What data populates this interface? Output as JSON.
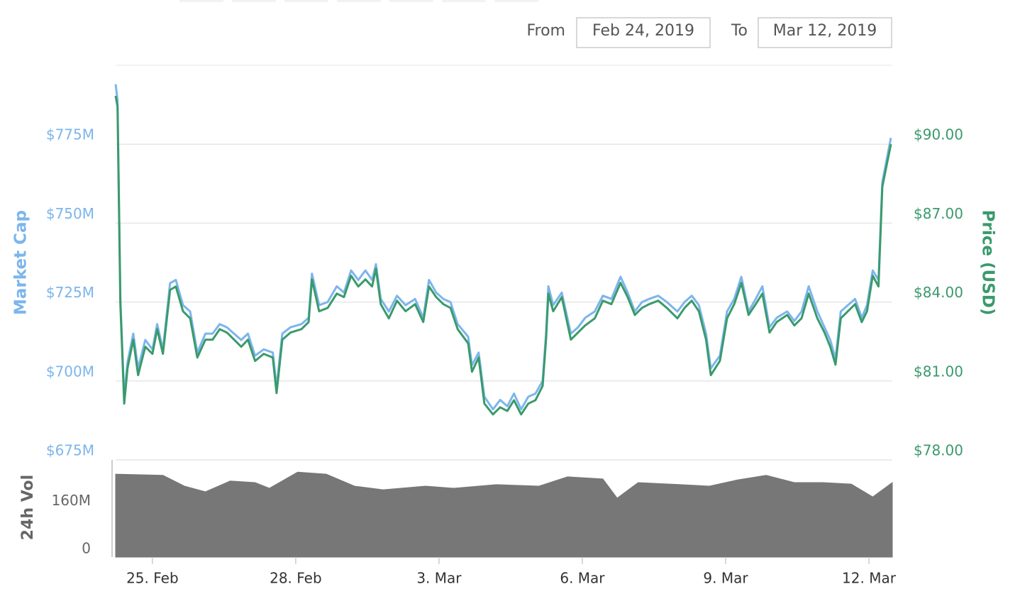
{
  "chart_data": [
    {
      "type": "line",
      "from_label": "From",
      "from_date": "Feb 24, 2019",
      "to_label": "To",
      "to_date": "Mar 12, 2019",
      "ylabel": "Market Cap",
      "y2label": "Price (USD)",
      "x": [
        0.23,
        0.27,
        0.33,
        0.41,
        0.48,
        0.6,
        0.7,
        0.85,
        1.0,
        1.1,
        1.22,
        1.37,
        1.49,
        1.64,
        1.79,
        1.94,
        2.11,
        2.26,
        2.41,
        2.56,
        2.71,
        2.86,
        3.0,
        3.15,
        3.33,
        3.52,
        3.6,
        3.72,
        3.89,
        4.12,
        4.27,
        4.34,
        4.49,
        4.67,
        4.86,
        5.01,
        5.16,
        5.31,
        5.46,
        5.6,
        5.68,
        5.78,
        5.95,
        6.12,
        6.3,
        6.5,
        6.67,
        6.79,
        6.94,
        7.09,
        7.24,
        7.39,
        7.61,
        7.69,
        7.83,
        7.95,
        8.13,
        8.28,
        8.43,
        8.57,
        8.72,
        8.87,
        9.02,
        9.17,
        9.24,
        9.29,
        9.39,
        9.57,
        9.76,
        9.91,
        10.06,
        10.26,
        10.43,
        10.61,
        10.8,
        10.95,
        11.1,
        11.25,
        11.4,
        11.59,
        11.77,
        11.99,
        12.14,
        12.29,
        12.44,
        12.59,
        12.69,
        12.88,
        13.03,
        13.18,
        13.33,
        13.48,
        13.63,
        13.77,
        13.92,
        14.07,
        14.29,
        14.44,
        14.59,
        14.74,
        14.92,
        15.07,
        15.19,
        15.3,
        15.41,
        15.56,
        15.71,
        15.85,
        15.96,
        16.08,
        16.2,
        16.28,
        16.37,
        16.46
      ],
      "series": [
        {
          "name": "Market Cap",
          "color": "#7cb5ec",
          "axis": "y",
          "values": [
            794,
            789,
            726,
            695,
            706,
            715,
            704,
            713,
            710,
            718,
            710,
            731,
            732,
            724,
            722,
            709,
            715,
            715,
            718,
            717,
            715,
            713,
            715,
            708,
            710,
            709,
            698,
            715,
            717,
            718,
            720,
            734,
            724,
            725,
            730,
            728,
            735,
            732,
            735,
            732,
            737,
            726,
            722,
            727,
            724,
            726,
            720,
            732,
            728,
            726,
            725,
            718,
            714,
            705,
            709,
            695,
            691,
            694,
            692,
            696,
            691,
            695,
            696,
            700,
            715,
            730,
            724,
            728,
            715,
            717,
            720,
            722,
            727,
            726,
            733,
            728,
            722,
            725,
            726,
            727,
            725,
            722,
            725,
            727,
            724,
            715,
            704,
            708,
            722,
            726,
            733,
            722,
            726,
            730,
            717,
            720,
            722,
            719,
            722,
            730,
            722,
            717,
            713,
            707,
            722,
            724,
            726,
            720,
            724,
            735,
            732,
            763,
            770,
            777
          ]
        },
        {
          "name": "Price (USD)",
          "color": "#3a9a6c",
          "axis": "y2",
          "values": [
            91.84,
            91.43,
            83.92,
            80.14,
            81.49,
            82.57,
            81.22,
            82.3,
            82.03,
            82.97,
            82.03,
            84.46,
            84.59,
            83.65,
            83.38,
            81.89,
            82.57,
            82.57,
            82.97,
            82.84,
            82.57,
            82.3,
            82.57,
            81.76,
            82.03,
            81.89,
            80.54,
            82.57,
            82.84,
            82.97,
            83.24,
            84.86,
            83.65,
            83.78,
            84.32,
            84.19,
            85.0,
            84.59,
            84.86,
            84.59,
            85.27,
            83.92,
            83.38,
            84.05,
            83.65,
            83.92,
            83.24,
            84.59,
            84.19,
            83.92,
            83.78,
            82.97,
            82.43,
            81.35,
            81.89,
            80.14,
            79.73,
            80.0,
            79.86,
            80.27,
            79.73,
            80.14,
            80.27,
            80.81,
            82.57,
            84.32,
            83.65,
            84.19,
            82.57,
            82.84,
            83.11,
            83.38,
            84.05,
            83.92,
            84.73,
            84.19,
            83.51,
            83.78,
            83.92,
            84.05,
            83.78,
            83.38,
            83.78,
            84.05,
            83.65,
            82.57,
            81.22,
            81.76,
            83.38,
            83.92,
            84.73,
            83.51,
            83.92,
            84.32,
            82.84,
            83.24,
            83.51,
            83.11,
            83.38,
            84.32,
            83.38,
            82.84,
            82.3,
            81.62,
            83.38,
            83.65,
            83.92,
            83.24,
            83.65,
            85.0,
            84.59,
            88.38,
            89.19,
            90.0
          ]
        }
      ],
      "xlim": [
        0.23,
        16.49
      ],
      "ylim": [
        675,
        800
      ],
      "yticks": [
        {
          "value": 675,
          "label": "$675M"
        },
        {
          "value": 700,
          "label": "$700M"
        },
        {
          "value": 725,
          "label": "$725M"
        },
        {
          "value": 750,
          "label": "$750M"
        },
        {
          "value": 775,
          "label": "$775M"
        }
      ],
      "y2lim": [
        78,
        93
      ],
      "y2ticks": [
        {
          "value": 78,
          "label": "$78.00"
        },
        {
          "value": 81,
          "label": "$81.00"
        },
        {
          "value": 84,
          "label": "$84.00"
        },
        {
          "value": 87,
          "label": "$87.00"
        },
        {
          "value": 90,
          "label": "$90.00"
        }
      ],
      "grid": true
    },
    {
      "type": "area",
      "ylabel": "24h Vol",
      "color": "#777777",
      "x": [
        0.23,
        1.22,
        1.67,
        2.11,
        2.63,
        3.15,
        3.45,
        4.04,
        4.64,
        5.23,
        5.83,
        6.72,
        7.31,
        8.2,
        9.09,
        9.69,
        10.43,
        10.73,
        11.17,
        12.06,
        12.66,
        13.25,
        13.85,
        14.44,
        15.04,
        15.63,
        16.08,
        16.49
      ],
      "values": [
        277,
        273,
        237,
        218,
        254,
        249,
        230,
        284,
        277,
        237,
        225,
        237,
        230,
        242,
        237,
        268,
        261,
        197,
        249,
        242,
        237,
        258,
        273,
        249,
        249,
        244,
        201,
        249
      ],
      "xlim": [
        0.23,
        16.49
      ],
      "ylim": [
        0,
        320
      ],
      "yticks": [
        0,
        {
          "value": 160,
          "label": "160M"
        }
      ],
      "xticks": [
        {
          "value": 1,
          "label": "25. Feb"
        },
        {
          "value": 4,
          "label": "28. Feb"
        },
        {
          "value": 7,
          "label": "3. Mar"
        },
        {
          "value": 10,
          "label": "6. Mar"
        },
        {
          "value": 13,
          "label": "9. Mar"
        },
        {
          "value": 16,
          "label": "12. Mar"
        }
      ]
    }
  ]
}
